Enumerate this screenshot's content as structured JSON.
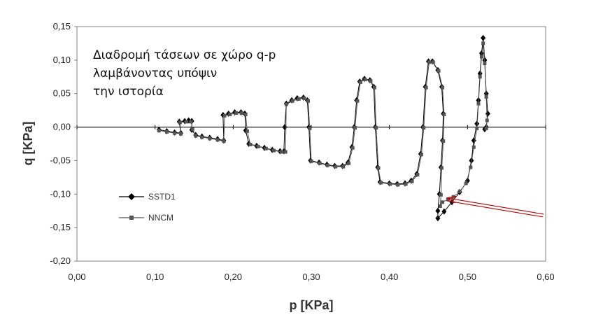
{
  "chart_data": {
    "type": "scatter",
    "title": "",
    "xlabel": "p [KPa]",
    "ylabel": "q [KPa]",
    "xlim": [
      0.0,
      0.6
    ],
    "ylim": [
      -0.2,
      0.15
    ],
    "x_ticks": [
      "0,00",
      "0,10",
      "0,20",
      "0,30",
      "0,40",
      "0,50",
      "0,60"
    ],
    "y_ticks": [
      "0,15",
      "0,10",
      "0,05",
      "0,00",
      "-0,05",
      "-0,10",
      "-0,15",
      "-0,20"
    ],
    "grid": false,
    "legend_position": "left",
    "annotation_lines": [
      "Διαδρομή τάσεων σε χώρο q-p",
      "λαμβάνοντας υπόψιν",
      "την ιστορία"
    ],
    "arrow": {
      "tail": [
        0.597,
        -0.132
      ],
      "head": [
        0.474,
        -0.108
      ],
      "color": "#c00000"
    },
    "series": [
      {
        "name": "SSTD1",
        "marker": "diamond",
        "points": [
          [
            0.105,
            -0.004
          ],
          [
            0.115,
            -0.006
          ],
          [
            0.125,
            -0.008
          ],
          [
            0.133,
            -0.009
          ],
          [
            0.131,
            0.008
          ],
          [
            0.138,
            0.009
          ],
          [
            0.143,
            0.01
          ],
          [
            0.147,
            0.009
          ],
          [
            0.147,
            -0.004
          ],
          [
            0.152,
            -0.012
          ],
          [
            0.16,
            -0.014
          ],
          [
            0.17,
            -0.016
          ],
          [
            0.18,
            -0.018
          ],
          [
            0.188,
            -0.02
          ],
          [
            0.187,
            0.018
          ],
          [
            0.194,
            0.02
          ],
          [
            0.202,
            0.022
          ],
          [
            0.21,
            0.022
          ],
          [
            0.215,
            0.02
          ],
          [
            0.216,
            -0.005
          ],
          [
            0.22,
            -0.025
          ],
          [
            0.23,
            -0.028
          ],
          [
            0.24,
            -0.031
          ],
          [
            0.25,
            -0.034
          ],
          [
            0.26,
            -0.036
          ],
          [
            0.265,
            -0.036
          ],
          [
            0.266,
            0.0
          ],
          [
            0.268,
            0.035
          ],
          [
            0.275,
            0.04
          ],
          [
            0.282,
            0.043
          ],
          [
            0.29,
            0.044
          ],
          [
            0.295,
            0.04
          ],
          [
            0.297,
            0.0
          ],
          [
            0.299,
            -0.05
          ],
          [
            0.31,
            -0.053
          ],
          [
            0.32,
            -0.056
          ],
          [
            0.33,
            -0.058
          ],
          [
            0.34,
            -0.058
          ],
          [
            0.347,
            -0.053
          ],
          [
            0.352,
            -0.03
          ],
          [
            0.355,
            0.0
          ],
          [
            0.358,
            0.04
          ],
          [
            0.362,
            0.068
          ],
          [
            0.368,
            0.072
          ],
          [
            0.375,
            0.07
          ],
          [
            0.38,
            0.06
          ],
          [
            0.382,
            0.0
          ],
          [
            0.385,
            -0.06
          ],
          [
            0.388,
            -0.082
          ],
          [
            0.4,
            -0.084
          ],
          [
            0.41,
            -0.085
          ],
          [
            0.42,
            -0.084
          ],
          [
            0.428,
            -0.08
          ],
          [
            0.435,
            -0.07
          ],
          [
            0.44,
            -0.04
          ],
          [
            0.443,
            0.0
          ],
          [
            0.446,
            0.06
          ],
          [
            0.45,
            0.098
          ],
          [
            0.455,
            0.098
          ],
          [
            0.462,
            0.085
          ],
          [
            0.467,
            0.06
          ],
          [
            0.469,
            0.02
          ],
          [
            0.468,
            -0.02
          ],
          [
            0.466,
            -0.06
          ],
          [
            0.464,
            -0.1
          ],
          [
            0.462,
            -0.125
          ],
          [
            0.462,
            -0.136
          ],
          [
            0.47,
            -0.126
          ],
          [
            0.48,
            -0.112
          ],
          [
            0.49,
            -0.097
          ],
          [
            0.5,
            -0.08
          ],
          [
            0.505,
            -0.05
          ],
          [
            0.508,
            -0.02
          ],
          [
            0.512,
            0.005
          ],
          [
            0.514,
            0.04
          ],
          [
            0.516,
            0.08
          ],
          [
            0.518,
            0.11
          ],
          [
            0.52,
            0.133
          ],
          [
            0.522,
            0.1
          ],
          [
            0.524,
            0.05
          ],
          [
            0.526,
            0.02
          ],
          [
            0.524,
            0.0
          ],
          [
            0.522,
            -0.003
          ]
        ]
      },
      {
        "name": "NNCM",
        "marker": "square",
        "points": [
          [
            0.105,
            -0.005
          ],
          [
            0.115,
            -0.007
          ],
          [
            0.125,
            -0.009
          ],
          [
            0.133,
            -0.01
          ],
          [
            0.132,
            0.007
          ],
          [
            0.14,
            0.008
          ],
          [
            0.146,
            0.008
          ],
          [
            0.148,
            -0.003
          ],
          [
            0.152,
            -0.013
          ],
          [
            0.16,
            -0.015
          ],
          [
            0.17,
            -0.017
          ],
          [
            0.18,
            -0.019
          ],
          [
            0.188,
            -0.021
          ],
          [
            0.189,
            0.017
          ],
          [
            0.196,
            0.019
          ],
          [
            0.204,
            0.021
          ],
          [
            0.211,
            0.021
          ],
          [
            0.216,
            0.019
          ],
          [
            0.218,
            -0.006
          ],
          [
            0.222,
            -0.026
          ],
          [
            0.232,
            -0.029
          ],
          [
            0.242,
            -0.032
          ],
          [
            0.252,
            -0.035
          ],
          [
            0.262,
            -0.037
          ],
          [
            0.267,
            -0.037
          ],
          [
            0.268,
            0.034
          ],
          [
            0.276,
            0.039
          ],
          [
            0.284,
            0.042
          ],
          [
            0.291,
            0.043
          ],
          [
            0.296,
            0.039
          ],
          [
            0.298,
            -0.002
          ],
          [
            0.3,
            -0.051
          ],
          [
            0.311,
            -0.054
          ],
          [
            0.321,
            -0.057
          ],
          [
            0.331,
            -0.059
          ],
          [
            0.341,
            -0.059
          ],
          [
            0.348,
            -0.054
          ],
          [
            0.353,
            -0.031
          ],
          [
            0.356,
            -0.001
          ],
          [
            0.359,
            0.039
          ],
          [
            0.363,
            0.067
          ],
          [
            0.369,
            0.071
          ],
          [
            0.376,
            0.069
          ],
          [
            0.381,
            0.059
          ],
          [
            0.383,
            -0.001
          ],
          [
            0.386,
            -0.061
          ],
          [
            0.389,
            -0.083
          ],
          [
            0.401,
            -0.085
          ],
          [
            0.411,
            -0.086
          ],
          [
            0.421,
            -0.085
          ],
          [
            0.429,
            -0.081
          ],
          [
            0.436,
            -0.071
          ],
          [
            0.441,
            -0.041
          ],
          [
            0.444,
            -0.001
          ],
          [
            0.447,
            0.059
          ],
          [
            0.451,
            0.097
          ],
          [
            0.456,
            0.097
          ],
          [
            0.463,
            0.084
          ],
          [
            0.468,
            0.059
          ],
          [
            0.47,
            0.019
          ],
          [
            0.469,
            -0.021
          ],
          [
            0.467,
            -0.061
          ],
          [
            0.466,
            -0.101
          ],
          [
            0.465,
            -0.118
          ],
          [
            0.468,
            -0.112
          ],
          [
            0.475,
            -0.108
          ],
          [
            0.482,
            -0.104
          ],
          [
            0.49,
            -0.096
          ],
          [
            0.498,
            -0.084
          ],
          [
            0.504,
            -0.06
          ],
          [
            0.508,
            -0.03
          ],
          [
            0.512,
            -0.002
          ],
          [
            0.514,
            0.035
          ],
          [
            0.516,
            0.075
          ],
          [
            0.518,
            0.105
          ],
          [
            0.52,
            0.125
          ],
          [
            0.522,
            0.095
          ],
          [
            0.524,
            0.045
          ],
          [
            0.525,
            0.01
          ],
          [
            0.524,
            -0.002
          ]
        ]
      }
    ]
  }
}
